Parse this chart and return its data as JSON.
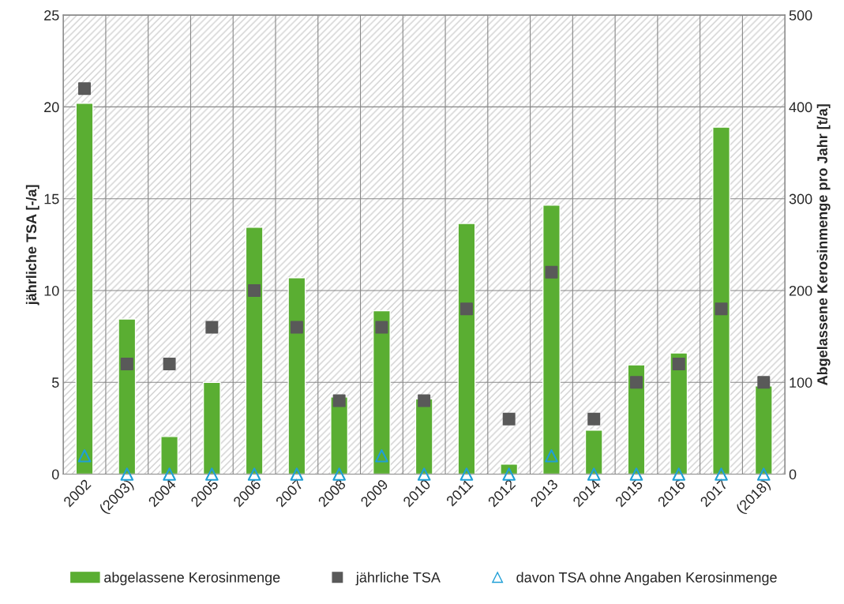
{
  "chart_data": {
    "type": "bar",
    "ylabel": "jährliche TSA [-/a]",
    "y2label": "Abgelassene Kerosinmenge pro Jahr [t/a]",
    "categories": [
      "2002",
      "(2003)",
      "2004",
      "2005",
      "2006",
      "2007",
      "2008",
      "2009",
      "2010",
      "2011",
      "2012",
      "2013",
      "2014",
      "2015",
      "2016",
      "2017",
      "(2018)"
    ],
    "series": [
      {
        "name": "abgelassene Kerosinmenge",
        "axis": "y2",
        "color": "#5aae32",
        "values": [
          404,
          169,
          41,
          100,
          269,
          214,
          84,
          178,
          82,
          273,
          11,
          293,
          48,
          119,
          132,
          378,
          96
        ]
      },
      {
        "name": "jährliche TSA",
        "type": "scatter",
        "marker": "square",
        "color": "#595959",
        "values": [
          21,
          6,
          6,
          8,
          10,
          8,
          4,
          8,
          4,
          9,
          3,
          11,
          3,
          5,
          6,
          9,
          5
        ]
      },
      {
        "name": "davon TSA ohne Angaben Kerosinmenge",
        "type": "scatter",
        "marker": "triangle",
        "color": "#1f9fd6",
        "values": [
          1,
          0,
          0,
          0,
          0,
          0,
          0,
          1,
          0,
          0,
          0,
          1,
          0,
          0,
          0,
          0,
          0
        ]
      }
    ],
    "ylim": [
      0,
      25
    ],
    "yticks": [
      0,
      5,
      10,
      15,
      20,
      25
    ],
    "y2lim": [
      0,
      500
    ],
    "y2ticks": [
      0,
      100,
      200,
      300,
      400,
      500
    ],
    "grid": true,
    "legend": "bottom"
  }
}
